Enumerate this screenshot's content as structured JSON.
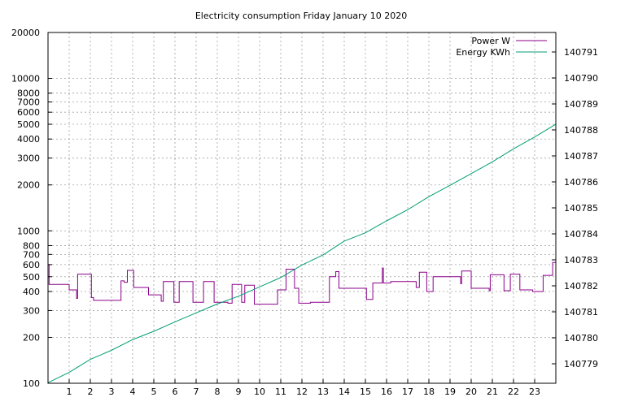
{
  "chart_data": {
    "type": "line",
    "title": "Electricity consumption Friday January 10 2020",
    "xlabel": "",
    "ylabel": "",
    "x_ticks": [
      "1",
      "2",
      "3",
      "4",
      "5",
      "6",
      "7",
      "8",
      "9",
      "10",
      "11",
      "12",
      "13",
      "14",
      "15",
      "16",
      "17",
      "18",
      "19",
      "20",
      "21",
      "22",
      "23"
    ],
    "x_range": [
      0,
      24
    ],
    "y_scale": "log",
    "ylim": [
      100,
      20000
    ],
    "y_ticks": [
      100,
      200,
      300,
      400,
      500,
      600,
      700,
      800,
      1000,
      2000,
      3000,
      4000,
      5000,
      6000,
      7000,
      8000,
      10000,
      20000
    ],
    "y2lim": [
      140778.25,
      140791.75
    ],
    "y2_ticks": [
      140779,
      140780,
      140781,
      140782,
      140783,
      140784,
      140785,
      140786,
      140787,
      140788,
      140789,
      140790,
      140791
    ],
    "grid": true,
    "legend_position": "top-right",
    "series": [
      {
        "name": "Power W",
        "color": "#8b008b",
        "axis": "y1",
        "x": [
          0,
          0.05,
          0.05,
          1.0,
          1.0,
          1.35,
          1.35,
          1.4,
          1.4,
          2.05,
          2.05,
          2.15,
          2.15,
          3.45,
          3.45,
          3.6,
          3.6,
          3.75,
          3.75,
          4.05,
          4.05,
          4.75,
          4.75,
          5.35,
          5.35,
          5.45,
          5.45,
          5.95,
          5.95,
          6.2,
          6.2,
          6.85,
          6.85,
          7.35,
          7.35,
          7.85,
          7.85,
          8.5,
          8.5,
          8.7,
          8.7,
          9.15,
          9.15,
          9.3,
          9.3,
          9.75,
          9.75,
          10.85,
          10.85,
          11.25,
          11.25,
          11.65,
          11.65,
          11.85,
          11.85,
          12.4,
          12.4,
          13.3,
          13.3,
          13.6,
          13.6,
          13.75,
          13.75,
          15.05,
          15.05,
          15.35,
          15.35,
          15.8,
          15.8,
          15.85,
          15.85,
          16.2,
          16.2,
          17.4,
          17.4,
          17.55,
          17.55,
          17.9,
          17.9,
          18.2,
          18.2,
          19.5,
          19.5,
          19.55,
          19.55,
          20.0,
          20.0,
          20.85,
          20.85,
          20.9,
          20.9,
          21.55,
          21.55,
          21.85,
          21.85,
          22.3,
          22.3,
          22.9,
          22.9,
          23.4,
          23.4,
          23.85,
          23.85,
          24.0
        ],
        "y": [
          600,
          600,
          445,
          445,
          410,
          410,
          360,
          360,
          520,
          520,
          365,
          365,
          350,
          350,
          470,
          470,
          460,
          460,
          550,
          550,
          425,
          425,
          380,
          380,
          345,
          345,
          465,
          465,
          340,
          340,
          465,
          465,
          340,
          340,
          465,
          465,
          340,
          340,
          335,
          335,
          445,
          445,
          340,
          340,
          440,
          440,
          330,
          330,
          410,
          410,
          560,
          560,
          420,
          420,
          335,
          335,
          340,
          340,
          500,
          500,
          540,
          540,
          420,
          420,
          355,
          355,
          455,
          455,
          570,
          570,
          455,
          455,
          465,
          465,
          425,
          425,
          535,
          535,
          400,
          400,
          500,
          500,
          450,
          450,
          545,
          545,
          420,
          420,
          405,
          405,
          515,
          515,
          405,
          405,
          520,
          520,
          410,
          410,
          400,
          400,
          510,
          510,
          620,
          620
        ]
      },
      {
        "name": "Energy KWh",
        "color": "#009e73",
        "axis": "y2",
        "x": [
          0,
          1,
          2,
          3,
          4,
          5,
          6,
          7,
          8,
          9,
          10,
          11,
          12,
          13,
          14,
          15,
          16,
          17,
          18,
          19,
          20,
          21,
          22,
          23,
          24
        ],
        "y": [
          140778.27,
          140778.67,
          140779.17,
          140779.52,
          140779.93,
          140780.25,
          140780.61,
          140780.96,
          140781.3,
          140781.6,
          140781.96,
          140782.32,
          140782.8,
          140783.19,
          140783.72,
          140784.04,
          140784.5,
          140784.93,
          140785.43,
          140785.87,
          140786.32,
          140786.77,
          140787.27,
          140787.73,
          140788.22
        ]
      }
    ]
  }
}
